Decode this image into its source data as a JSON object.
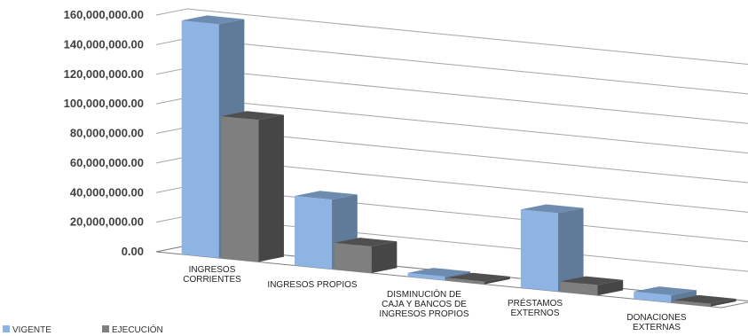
{
  "chart_data": {
    "type": "bar",
    "categories": [
      [
        "INGRESOS",
        "CORRIENTES"
      ],
      [
        "INGRESOS PROPIOS"
      ],
      [
        "DISMINUCIÓN DE",
        "CAJA Y BANCOS DE",
        "INGRESOS PROPIOS"
      ],
      [
        "PRÉSTAMOS",
        "EXTERNOS"
      ],
      [
        "DONACIONES",
        "EXTERNAS"
      ]
    ],
    "series": [
      {
        "name": "VIGENTE",
        "color": "#8db4e2",
        "values": [
          158000000,
          47000000,
          2500000,
          53000000,
          5000000
        ]
      },
      {
        "name": "EJECUCIÓN",
        "color": "#7f7f7f",
        "values": [
          96000000,
          18000000,
          0,
          7000000,
          0
        ]
      }
    ],
    "yticks": [
      "0.00",
      "20,000,000.00",
      "40,000,000.00",
      "60,000,000.00",
      "80,000,000.00",
      "100,000,000.00",
      "120,000,000.00",
      "140,000,000.00",
      "160,000,000.00"
    ],
    "ylim": [
      0,
      160000000
    ],
    "grid": true,
    "legend_position": "bottom-left",
    "style": "3d-clustered-column"
  }
}
